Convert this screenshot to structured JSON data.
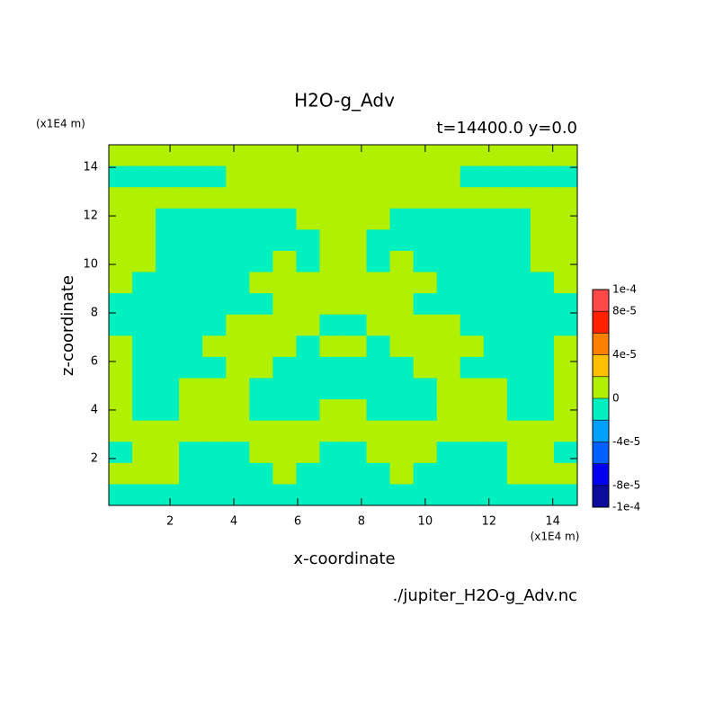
{
  "chart_data": {
    "type": "contour",
    "title": "H2O-g_Adv",
    "subtitle": "t=14400.0 y=0.0",
    "x_label": "x-coordinate",
    "y_label": "z-coordinate",
    "x_unit": "(x1E4 m)",
    "y_unit": "(x1E4 m)",
    "source": "./jupiter_H2O-g_Adv.nc",
    "xlim": [
      0.08,
      14.77
    ],
    "ylim": [
      0.07,
      14.93
    ],
    "xticks": [
      2,
      4,
      6,
      8,
      10,
      12,
      14
    ],
    "yticks": [
      2,
      4,
      6,
      8,
      10,
      12,
      14
    ],
    "levels": [
      -0.0001,
      -8e-05,
      -6e-05,
      -4e-05,
      -2e-05,
      0,
      2e-05,
      4e-05,
      6e-05,
      8e-05,
      0.0001
    ],
    "colors": [
      "#0c0c9c",
      "#0000f0",
      "#0060ff",
      "#00a0ff",
      "#00f0c0",
      "#b0f000",
      "#ffc000",
      "#ff8000",
      "#ff2000",
      "#ff4848"
    ],
    "colorbar_ticks": [
      {
        "value": 0.0001,
        "label": "1e-4"
      },
      {
        "value": 8e-05,
        "label": "8e-5"
      },
      {
        "value": 4e-05,
        "label": "4e-5"
      },
      0,
      {
        "value": -4e-05,
        "label": "-4e-5"
      },
      {
        "value": -8e-05,
        "label": "-8e-5"
      },
      {
        "value": -0.0001,
        "label": "-1e-4"
      }
    ],
    "z": [
      [
        1e-05,
        1e-05,
        1e-05,
        1e-05,
        1e-05,
        1e-05,
        1e-05,
        1e-05,
        1e-05,
        1e-05,
        1e-05,
        1e-05,
        1e-05,
        1e-05,
        1e-05,
        1e-05,
        1e-05,
        1e-05,
        1e-05,
        1e-05
      ],
      [
        -1e-05,
        -1e-05,
        -1e-05,
        -1e-05,
        -1e-05,
        1e-05,
        1e-05,
        1e-05,
        1e-05,
        1e-05,
        1e-05,
        1e-05,
        1e-05,
        1e-05,
        1e-05,
        -1e-05,
        -1e-05,
        -1e-05,
        -1e-05,
        -1e-05
      ],
      [
        1e-05,
        1e-05,
        1e-05,
        1e-05,
        1e-05,
        1e-05,
        1e-05,
        1e-05,
        1e-05,
        1e-05,
        1e-05,
        1e-05,
        1e-05,
        1e-05,
        1e-05,
        1e-05,
        1e-05,
        1e-05,
        1e-05,
        1e-05
      ],
      [
        1e-05,
        1e-05,
        -1e-05,
        -1e-05,
        -1e-05,
        -1e-05,
        -1e-05,
        -1e-05,
        1e-05,
        1e-05,
        1e-05,
        1e-05,
        -1e-05,
        -1e-05,
        -1e-05,
        -1e-05,
        -1e-05,
        -1e-05,
        1e-05,
        1e-05
      ],
      [
        1e-05,
        1e-05,
        -1e-05,
        -1e-05,
        -1e-05,
        -1e-05,
        -1e-05,
        -1e-05,
        -1e-05,
        1e-05,
        1e-05,
        -1e-05,
        -1e-05,
        -1e-05,
        -1e-05,
        -1e-05,
        -1e-05,
        -1e-05,
        1e-05,
        1e-05
      ],
      [
        1e-05,
        1e-05,
        -1e-05,
        -1e-05,
        -1e-05,
        -1e-05,
        -1e-05,
        1e-05,
        -1e-05,
        1e-05,
        1e-05,
        -1e-05,
        1e-05,
        -1e-05,
        -1e-05,
        -1e-05,
        -1e-05,
        -1e-05,
        1e-05,
        1e-05
      ],
      [
        1e-05,
        -1e-05,
        -1e-05,
        -1e-05,
        -1e-05,
        -1e-05,
        1e-05,
        1e-05,
        1e-05,
        1e-05,
        1e-05,
        1e-05,
        1e-05,
        1e-05,
        -1e-05,
        -1e-05,
        -1e-05,
        -1e-05,
        -1e-05,
        1e-05
      ],
      [
        -1e-05,
        -1e-05,
        -1e-05,
        -1e-05,
        -1e-05,
        -1e-05,
        -1e-05,
        1e-05,
        1e-05,
        1e-05,
        1e-05,
        1e-05,
        1e-05,
        -1e-05,
        -1e-05,
        -1e-05,
        -1e-05,
        -1e-05,
        -1e-05,
        -1e-05
      ],
      [
        -1e-05,
        -1e-05,
        -1e-05,
        -1e-05,
        -1e-05,
        1e-05,
        1e-05,
        1e-05,
        1e-05,
        -1e-05,
        -1e-05,
        1e-05,
        1e-05,
        1e-05,
        1e-05,
        -1e-05,
        -1e-05,
        -1e-05,
        -1e-05,
        -1e-05
      ],
      [
        1e-05,
        -1e-05,
        -1e-05,
        -1e-05,
        1e-05,
        1e-05,
        1e-05,
        1e-05,
        -1e-05,
        1e-05,
        1e-05,
        -1e-05,
        1e-05,
        1e-05,
        1e-05,
        1e-05,
        -1e-05,
        -1e-05,
        -1e-05,
        1e-05
      ],
      [
        1e-05,
        -1e-05,
        -1e-05,
        -1e-05,
        -1e-05,
        1e-05,
        1e-05,
        -1e-05,
        -1e-05,
        -1e-05,
        -1e-05,
        -1e-05,
        -1e-05,
        1e-05,
        1e-05,
        -1e-05,
        -1e-05,
        -1e-05,
        -1e-05,
        1e-05
      ],
      [
        1e-05,
        -1e-05,
        -1e-05,
        1e-05,
        1e-05,
        1e-05,
        -1e-05,
        -1e-05,
        -1e-05,
        -1e-05,
        -1e-05,
        -1e-05,
        -1e-05,
        -1e-05,
        1e-05,
        1e-05,
        1e-05,
        -1e-05,
        -1e-05,
        1e-05
      ],
      [
        1e-05,
        -1e-05,
        -1e-05,
        1e-05,
        1e-05,
        1e-05,
        -1e-05,
        -1e-05,
        -1e-05,
        1e-05,
        1e-05,
        -1e-05,
        -1e-05,
        -1e-05,
        1e-05,
        1e-05,
        1e-05,
        -1e-05,
        -1e-05,
        1e-05
      ],
      [
        1e-05,
        1e-05,
        1e-05,
        1e-05,
        1e-05,
        1e-05,
        1e-05,
        1e-05,
        1e-05,
        1e-05,
        1e-05,
        1e-05,
        1e-05,
        1e-05,
        1e-05,
        1e-05,
        1e-05,
        1e-05,
        1e-05,
        1e-05
      ],
      [
        -1e-05,
        1e-05,
        1e-05,
        -1e-05,
        -1e-05,
        -1e-05,
        1e-05,
        1e-05,
        1e-05,
        -1e-05,
        -1e-05,
        1e-05,
        1e-05,
        1e-05,
        -1e-05,
        -1e-05,
        -1e-05,
        1e-05,
        1e-05,
        -1e-05
      ],
      [
        1e-05,
        1e-05,
        1e-05,
        -1e-05,
        -1e-05,
        -1e-05,
        -1e-05,
        1e-05,
        -1e-05,
        -1e-05,
        -1e-05,
        -1e-05,
        1e-05,
        -1e-05,
        -1e-05,
        -1e-05,
        -1e-05,
        1e-05,
        1e-05,
        1e-05
      ],
      [
        -1e-05,
        -1e-05,
        -1e-05,
        -1e-05,
        -1e-05,
        -1e-05,
        -1e-05,
        -1e-05,
        -1e-05,
        -1e-05,
        -1e-05,
        -1e-05,
        -1e-05,
        -1e-05,
        -1e-05,
        -1e-05,
        -1e-05,
        -1e-05,
        -1e-05,
        -1e-05
      ]
    ]
  }
}
